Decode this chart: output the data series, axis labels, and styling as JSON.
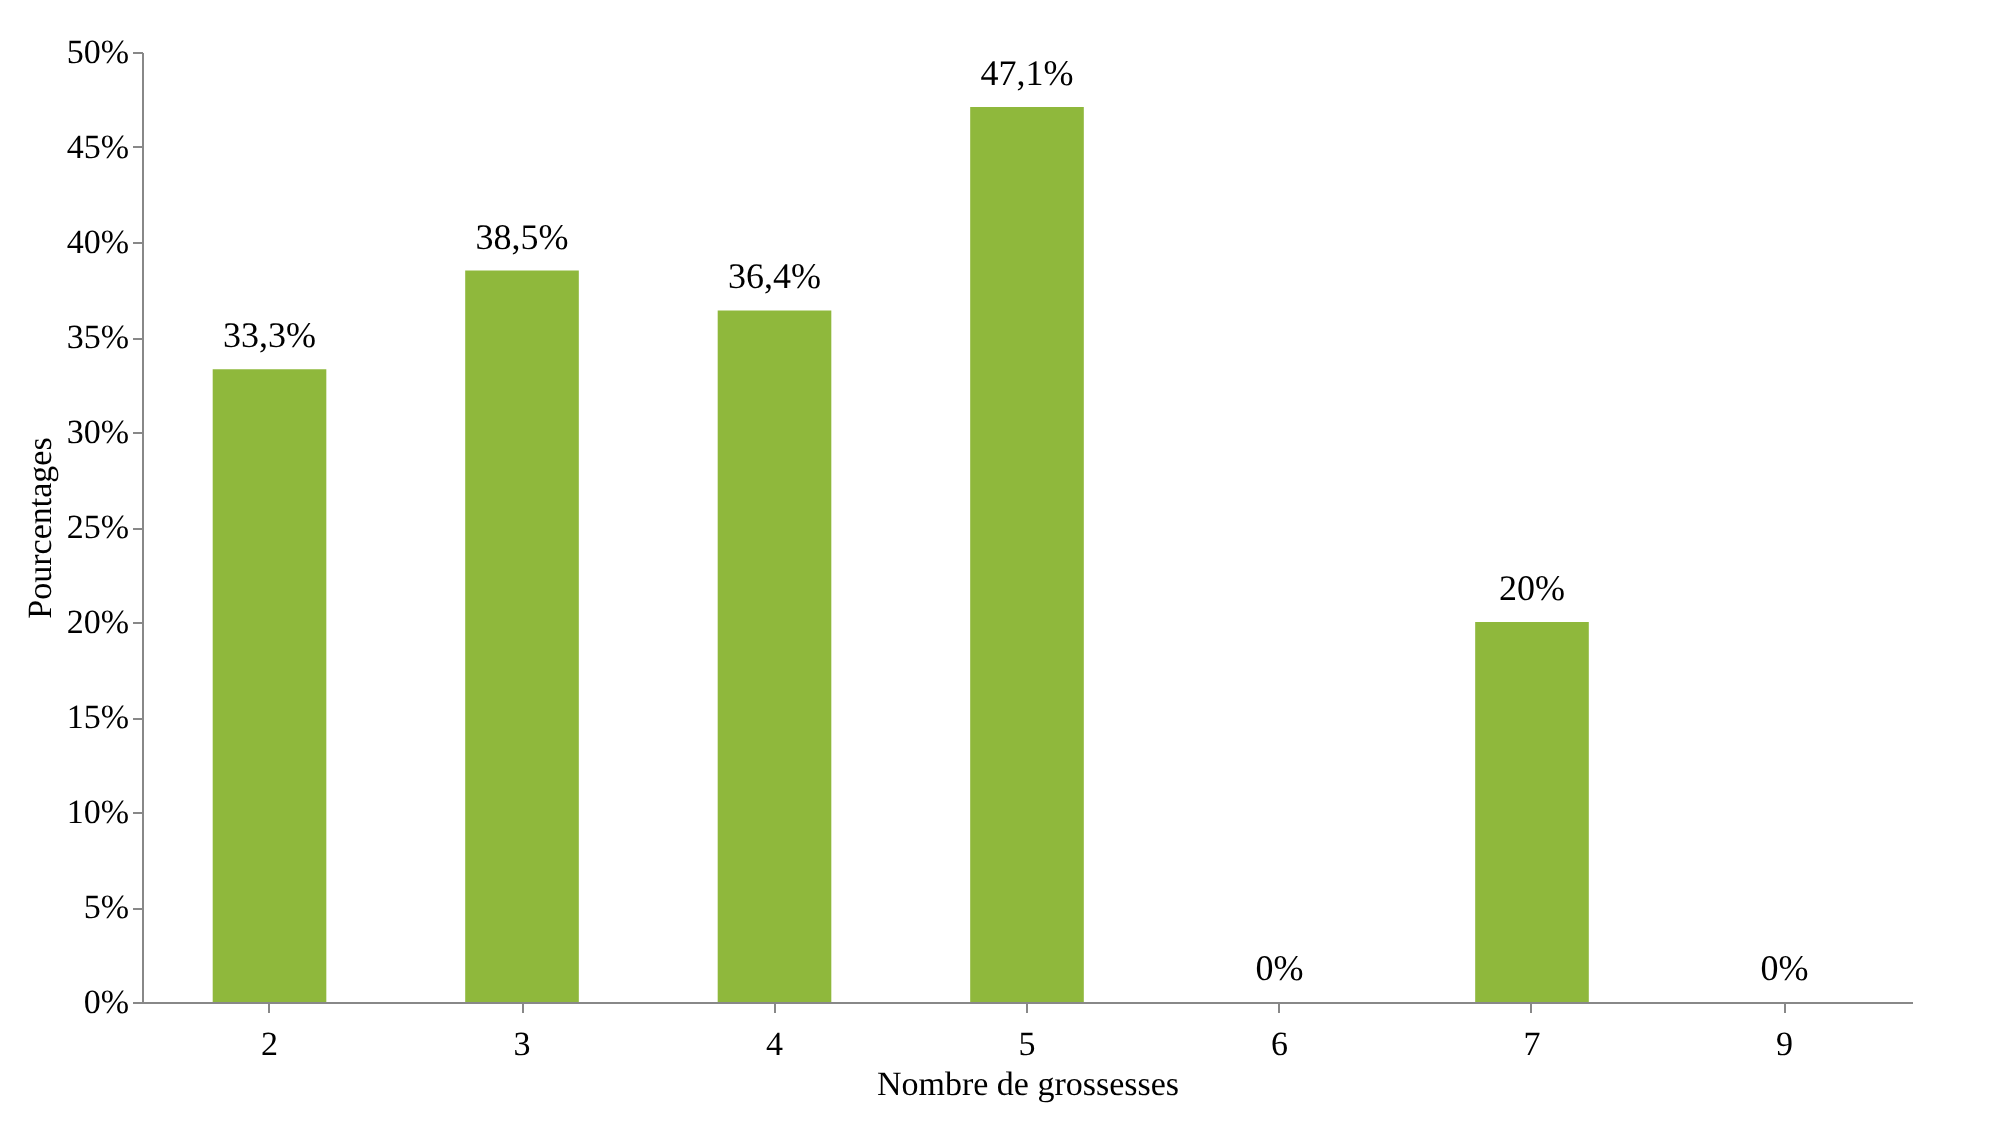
{
  "chart_data": {
    "type": "bar",
    "xlabel": "Nombre de grossesses",
    "ylabel": "Pourcentages",
    "categories": [
      "2",
      "3",
      "4",
      "5",
      "6",
      "7",
      "9"
    ],
    "values": [
      33.3,
      38.5,
      36.4,
      47.1,
      0,
      20,
      0
    ],
    "value_labels": [
      "33,3%",
      "38,5%",
      "36,4%",
      "47,1%",
      "0%",
      "20%",
      "0%"
    ],
    "color": "#8fb83c",
    "ylim": [
      0,
      50
    ],
    "yticks": [
      {
        "value": 0,
        "label": "0%"
      },
      {
        "value": 5,
        "label": "5%"
      },
      {
        "value": 10,
        "label": "10%"
      },
      {
        "value": 15,
        "label": "15%"
      },
      {
        "value": 20,
        "label": "20%"
      },
      {
        "value": 25,
        "label": "25%"
      },
      {
        "value": 30,
        "label": "30%"
      },
      {
        "value": 35,
        "label": "35%"
      },
      {
        "value": 40,
        "label": "40%"
      },
      {
        "value": 45,
        "label": "45%"
      },
      {
        "value": 50,
        "label": "50%"
      }
    ],
    "grid": false
  }
}
